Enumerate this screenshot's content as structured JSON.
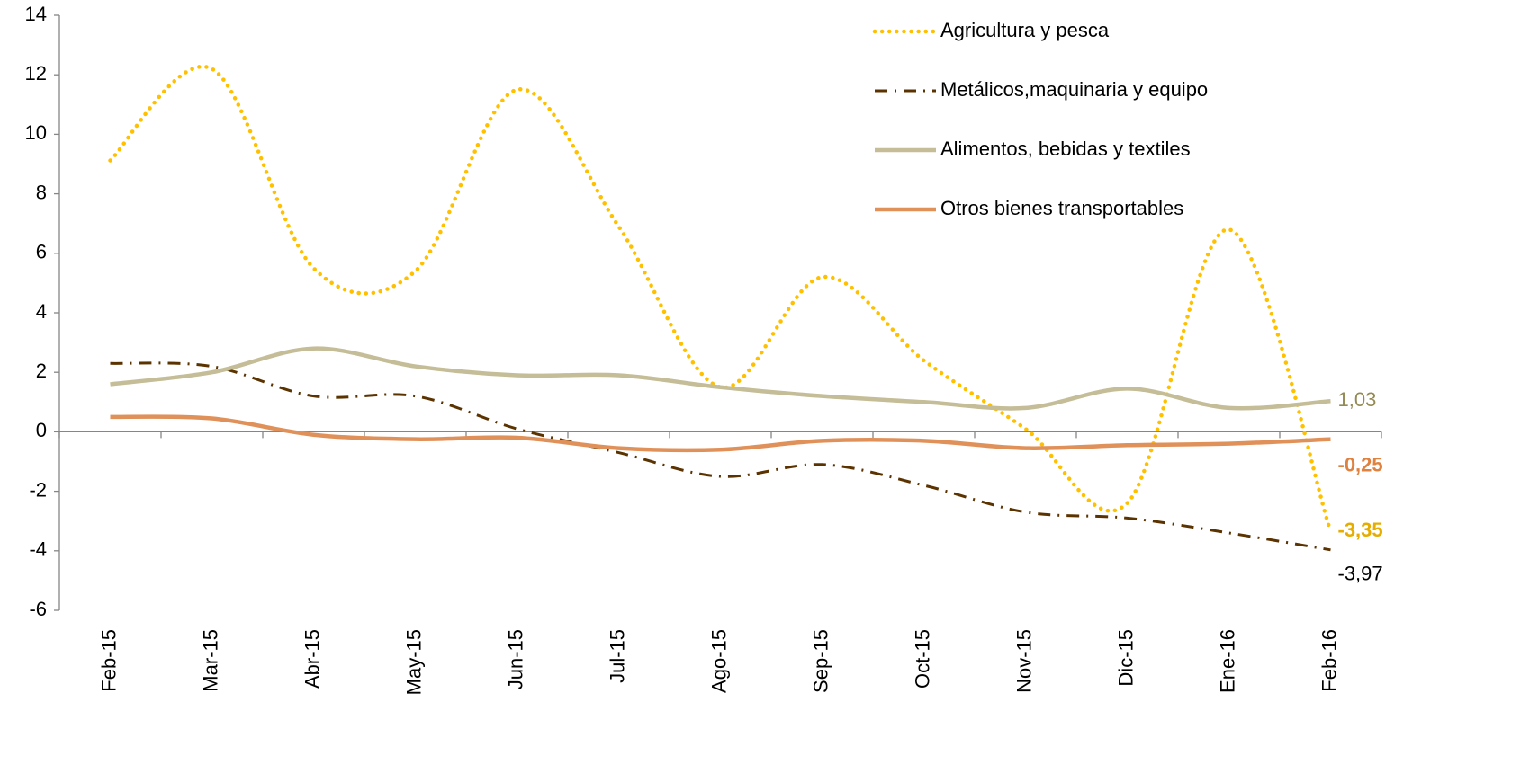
{
  "chart_data": {
    "type": "line",
    "categories": [
      "Feb-15",
      "Mar-15",
      "Abr-15",
      "May-15",
      "Jun-15",
      "Jul-15",
      "Ago-15",
      "Sep-15",
      "Oct-15",
      "Nov-15",
      "Dic-15",
      "Ene-16",
      "Feb-16"
    ],
    "series": [
      {
        "name": "Agricultura y pesca",
        "color": "#ffc000",
        "style": "dotted",
        "values": [
          9.12,
          12.2,
          5.5,
          5.4,
          11.5,
          6.9,
          1.5,
          5.2,
          2.4,
          0.1,
          -2.4,
          6.8,
          -3.35
        ],
        "value_labels": [
          null,
          null,
          null,
          null,
          null,
          null,
          null,
          null,
          null,
          null,
          null,
          null,
          "-3,35"
        ]
      },
      {
        "name": "Metálicos,maquinaria y equipo",
        "color": "#5b3300",
        "style": "dashdot",
        "values": [
          2.3,
          2.2,
          1.2,
          1.2,
          0.1,
          -0.7,
          -1.5,
          -1.1,
          -1.8,
          -2.7,
          -2.9,
          -3.4,
          -3.97
        ],
        "value_labels": [
          null,
          null,
          null,
          null,
          null,
          null,
          null,
          null,
          null,
          null,
          null,
          null,
          "-3,97"
        ]
      },
      {
        "name": "Alimentos, bebidas y textiles",
        "color": "#c4bd97",
        "style": "solid",
        "values": [
          1.6,
          2.0,
          2.8,
          2.2,
          1.9,
          1.9,
          1.5,
          1.2,
          1.0,
          0.8,
          1.45,
          0.8,
          1.03
        ],
        "value_labels": [
          null,
          null,
          null,
          null,
          null,
          null,
          null,
          null,
          null,
          null,
          null,
          null,
          "1,03"
        ]
      },
      {
        "name": "Otros bienes transportables",
        "color": "#e0915a",
        "style": "solid",
        "values": [
          0.5,
          0.45,
          -0.1,
          -0.25,
          -0.2,
          -0.55,
          -0.6,
          -0.3,
          -0.3,
          -0.55,
          -0.45,
          -0.4,
          -0.25
        ],
        "value_labels": [
          null,
          null,
          null,
          null,
          null,
          null,
          null,
          null,
          null,
          null,
          null,
          null,
          "-0,25"
        ]
      }
    ],
    "ylim": [
      -6,
      14
    ],
    "yticks": [
      -6,
      -4,
      -2,
      0,
      2,
      4,
      6,
      8,
      10,
      12,
      14
    ],
    "grid": false,
    "legend": "top-right"
  }
}
